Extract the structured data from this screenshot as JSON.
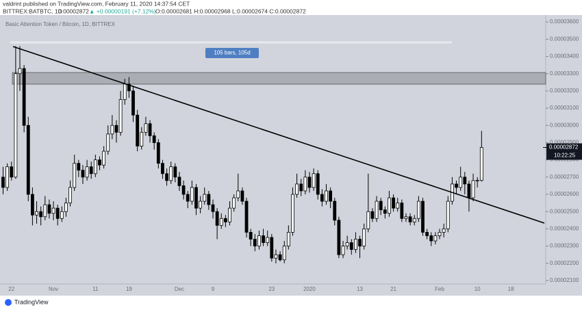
{
  "header": {
    "author_line": "valdrint published on TradingView.com, February 11, 2020 14:37:54 CET",
    "symbol": "BITTREX:BATBTC, 1D",
    "last": "0.00002872",
    "change": "▲ +0.00000191 (+7.12%)",
    "ohlc": "O:0.00002681 H:0.00002968 L:0.00002674 C:0.00002872"
  },
  "chart_data": {
    "type": "candlestick",
    "title": "Basic Attention Token / Bitcoin, 1D, BITTREX",
    "categories": [
      null,
      null,
      "22",
      null,
      null,
      null,
      null,
      null,
      null,
      null,
      null,
      null,
      "Nov",
      null,
      null,
      null,
      null,
      null,
      null,
      null,
      null,
      null,
      "11",
      null,
      null,
      null,
      null,
      null,
      null,
      null,
      "19",
      null,
      null,
      null,
      null,
      null,
      null,
      null,
      null,
      null,
      null,
      null,
      "Dec",
      null,
      null,
      null,
      null,
      null,
      null,
      null,
      "9",
      null,
      null,
      null,
      null,
      null,
      null,
      null,
      null,
      null,
      null,
      null,
      null,
      null,
      "23",
      null,
      null,
      null,
      null,
      null,
      null,
      null,
      null,
      "2020",
      null,
      null,
      null,
      null,
      null,
      null,
      null,
      null,
      null,
      null,
      null,
      "13",
      null,
      null,
      null,
      null,
      null,
      null,
      null,
      "21",
      null,
      null,
      null,
      null,
      null,
      null,
      null,
      null,
      null,
      null,
      "Feb",
      null,
      null,
      null,
      null,
      null,
      null,
      null,
      null,
      "10",
      null,
      null,
      null,
      null,
      null,
      null,
      null,
      "18"
    ],
    "open": [
      2.7e-05,
      2.64e-05,
      2.76e-05,
      2.7e-05,
      3.3e-05,
      3.33e-05,
      3e-05,
      2.6e-05,
      2.48e-05,
      2.5e-05,
      2.47e-05,
      2.54e-05,
      2.49e-05,
      2.52e-05,
      2.46e-05,
      2.5e-05,
      2.55e-05,
      2.64e-05,
      2.78e-05,
      2.74e-05,
      2.7e-05,
      2.76e-05,
      2.72e-05,
      2.8e-05,
      2.77e-05,
      2.85e-05,
      2.95e-05,
      3e-05,
      2.96e-05,
      3.15e-05,
      3.24e-05,
      3.2e-05,
      3.06e-05,
      2.88e-05,
      2.96e-05,
      3.01e-05,
      2.94e-05,
      2.9e-05,
      2.78e-05,
      2.72e-05,
      2.68e-05,
      2.76e-05,
      2.7e-05,
      2.65e-05,
      2.6e-05,
      2.56e-05,
      2.64e-05,
      2.52e-05,
      2.56e-05,
      2.6e-05,
      2.54e-05,
      2.5e-05,
      2.42e-05,
      2.46e-05,
      2.44e-05,
      2.52e-05,
      2.58e-05,
      2.62e-05,
      2.56e-05,
      2.38e-05,
      2.34e-05,
      2.3e-05,
      2.36e-05,
      2.32e-05,
      2.35e-05,
      2.23e-05,
      2.25e-05,
      2.22e-05,
      2.3e-05,
      2.38e-05,
      2.6e-05,
      2.66e-05,
      2.62e-05,
      2.7e-05,
      2.64e-05,
      2.72e-05,
      2.6e-05,
      2.56e-05,
      2.62e-05,
      2.56e-05,
      2.45e-05,
      2.25e-05,
      2.3e-05,
      2.32e-05,
      2.28e-05,
      2.34e-05,
      2.3e-05,
      2.4e-05,
      2.5e-05,
      2.46e-05,
      2.56e-05,
      2.51e-05,
      2.49e-05,
      2.58e-05,
      2.52e-05,
      2.55e-05,
      2.46e-05,
      2.47e-05,
      2.44e-05,
      2.46e-05,
      2.56e-05,
      2.38e-05,
      2.36e-05,
      2.33e-05,
      2.36e-05,
      2.38e-05,
      2.4e-05,
      2.56e-05,
      2.66e-05,
      2.64e-05,
      2.7e-05,
      2.66e-05,
      2.58e-05,
      2.68e-05,
      2.681e-05,
      null,
      null,
      null,
      null,
      null,
      null,
      null
    ],
    "high": [
      2.76e-05,
      2.78e-05,
      2.79e-05,
      3.46e-05,
      3.46e-05,
      3.35e-05,
      3.05e-05,
      2.64e-05,
      2.56e-05,
      2.53e-05,
      2.59e-05,
      2.57e-05,
      2.56e-05,
      2.54e-05,
      2.53e-05,
      2.58e-05,
      2.68e-05,
      2.83e-05,
      2.8e-05,
      2.77e-05,
      2.8e-05,
      2.79e-05,
      2.83e-05,
      2.82e-05,
      2.88e-05,
      3e-05,
      3.06e-05,
      3.03e-05,
      3.2e-05,
      3.27e-05,
      3.28e-05,
      3.23e-05,
      3.09e-05,
      2.99e-05,
      3.05e-05,
      3.03e-05,
      2.96e-05,
      2.92e-05,
      2.8e-05,
      2.75e-05,
      2.79e-05,
      2.78e-05,
      2.73e-05,
      2.68e-05,
      2.62e-05,
      2.68e-05,
      2.66e-05,
      2.59e-05,
      2.64e-05,
      2.62e-05,
      2.57e-05,
      2.52e-05,
      2.49e-05,
      2.48e-05,
      2.56e-05,
      2.6e-05,
      2.72e-05,
      2.64e-05,
      2.58e-05,
      2.4e-05,
      2.37e-05,
      2.39e-05,
      2.4e-05,
      2.39e-05,
      2.37e-05,
      2.28e-05,
      2.27e-05,
      2.33e-05,
      2.42e-05,
      2.64e-05,
      2.72e-05,
      2.69e-05,
      2.74e-05,
      2.73e-05,
      2.75e-05,
      2.74e-05,
      2.63e-05,
      2.66e-05,
      2.64e-05,
      2.58e-05,
      2.47e-05,
      2.33e-05,
      2.36e-05,
      2.34e-05,
      2.38e-05,
      2.36e-05,
      2.43e-05,
      2.72e-05,
      2.52e-05,
      2.59e-05,
      2.58e-05,
      2.53e-05,
      2.62e-05,
      2.6e-05,
      2.58e-05,
      2.57e-05,
      2.49e-05,
      2.49e-05,
      2.48e-05,
      2.59e-05,
      2.58e-05,
      2.4e-05,
      2.38e-05,
      2.38e-05,
      2.4e-05,
      2.43e-05,
      2.59e-05,
      2.7e-05,
      2.68e-05,
      2.76e-05,
      2.73e-05,
      2.68e-05,
      2.72e-05,
      2.7e-05,
      2.968e-05,
      null,
      null,
      null,
      null,
      null,
      null,
      null
    ],
    "low": [
      2.6e-05,
      2.62e-05,
      2.68e-05,
      2.69e-05,
      3.2e-05,
      2.96e-05,
      2.56e-05,
      2.42e-05,
      2.43e-05,
      2.42e-05,
      2.45e-05,
      2.46e-05,
      2.45e-05,
      2.42e-05,
      2.44e-05,
      2.47e-05,
      2.53e-05,
      2.62e-05,
      2.7e-05,
      2.66e-05,
      2.68e-05,
      2.69e-05,
      2.7e-05,
      2.74e-05,
      2.75e-05,
      2.83e-05,
      2.92e-05,
      2.9e-05,
      2.94e-05,
      3.12e-05,
      3.16e-05,
      3.02e-05,
      2.85e-05,
      2.86e-05,
      2.94e-05,
      2.9e-05,
      2.86e-05,
      2.75e-05,
      2.69e-05,
      2.65e-05,
      2.66e-05,
      2.67e-05,
      2.62e-05,
      2.57e-05,
      2.52e-05,
      2.54e-05,
      2.48e-05,
      2.49e-05,
      2.54e-05,
      2.51e-05,
      2.46e-05,
      2.34e-05,
      2.4e-05,
      2.41e-05,
      2.42e-05,
      2.5e-05,
      2.56e-05,
      2.54e-05,
      2.35e-05,
      2.3e-05,
      2.27e-05,
      2.28e-05,
      2.3e-05,
      2.3e-05,
      2.21e-05,
      2.2e-05,
      2.21e-05,
      2.2e-05,
      2.28e-05,
      2.36e-05,
      2.58e-05,
      2.59e-05,
      2.6e-05,
      2.61e-05,
      2.62e-05,
      2.57e-05,
      2.53e-05,
      2.54e-05,
      2.52e-05,
      2.42e-05,
      2.23e-05,
      2.23e-05,
      2.28e-05,
      2.25e-05,
      2.26e-05,
      2.23e-05,
      2.28e-05,
      2.38e-05,
      2.44e-05,
      2.44e-05,
      2.48e-05,
      2.46e-05,
      2.47e-05,
      2.5e-05,
      2.5e-05,
      2.44e-05,
      2.44e-05,
      2.42e-05,
      2.42e-05,
      2.44e-05,
      2.36e-05,
      2.34e-05,
      2.3e-05,
      2.31e-05,
      2.34e-05,
      2.35e-05,
      2.38e-05,
      2.54e-05,
      2.6e-05,
      2.62e-05,
      2.6e-05,
      2.5e-05,
      2.56e-05,
      2.64e-05,
      2.674e-05,
      null,
      null,
      null,
      null,
      null,
      null,
      null
    ],
    "close": [
      2.64e-05,
      2.76e-05,
      2.7e-05,
      3.3e-05,
      3.33e-05,
      3e-05,
      2.6e-05,
      2.48e-05,
      2.5e-05,
      2.47e-05,
      2.54e-05,
      2.49e-05,
      2.52e-05,
      2.46e-05,
      2.5e-05,
      2.55e-05,
      2.64e-05,
      2.78e-05,
      2.74e-05,
      2.7e-05,
      2.76e-05,
      2.72e-05,
      2.8e-05,
      2.77e-05,
      2.85e-05,
      2.95e-05,
      3e-05,
      2.96e-05,
      3.15e-05,
      3.24e-05,
      3.2e-05,
      3.06e-05,
      2.88e-05,
      2.96e-05,
      3.01e-05,
      2.94e-05,
      2.9e-05,
      2.78e-05,
      2.72e-05,
      2.68e-05,
      2.76e-05,
      2.7e-05,
      2.65e-05,
      2.6e-05,
      2.56e-05,
      2.64e-05,
      2.52e-05,
      2.56e-05,
      2.6e-05,
      2.54e-05,
      2.5e-05,
      2.42e-05,
      2.46e-05,
      2.44e-05,
      2.52e-05,
      2.58e-05,
      2.62e-05,
      2.56e-05,
      2.38e-05,
      2.34e-05,
      2.3e-05,
      2.36e-05,
      2.32e-05,
      2.35e-05,
      2.23e-05,
      2.25e-05,
      2.22e-05,
      2.3e-05,
      2.38e-05,
      2.6e-05,
      2.66e-05,
      2.62e-05,
      2.7e-05,
      2.64e-05,
      2.72e-05,
      2.6e-05,
      2.56e-05,
      2.62e-05,
      2.56e-05,
      2.45e-05,
      2.25e-05,
      2.3e-05,
      2.32e-05,
      2.28e-05,
      2.34e-05,
      2.3e-05,
      2.4e-05,
      2.5e-05,
      2.46e-05,
      2.56e-05,
      2.51e-05,
      2.49e-05,
      2.58e-05,
      2.52e-05,
      2.55e-05,
      2.46e-05,
      2.47e-05,
      2.44e-05,
      2.46e-05,
      2.56e-05,
      2.38e-05,
      2.36e-05,
      2.33e-05,
      2.36e-05,
      2.38e-05,
      2.4e-05,
      2.56e-05,
      2.66e-05,
      2.64e-05,
      2.7e-05,
      2.66e-05,
      2.58e-05,
      2.68e-05,
      2.681e-05,
      2.872e-05,
      null,
      null,
      null,
      null,
      null,
      null,
      null
    ],
    "up_color": "#ffffff",
    "down_color": "#000000",
    "border_color": "#000000",
    "ylim": [
      2.08e-05,
      3.648e-05
    ],
    "yticks": [
      {
        "value": 2.1e-05,
        "label": "0.00002100"
      },
      {
        "value": 2.2e-05,
        "label": "0.00002200"
      },
      {
        "value": 2.3e-05,
        "label": "0.00002300"
      },
      {
        "value": 2.4e-05,
        "label": "0.00002400"
      },
      {
        "value": 2.5e-05,
        "label": "0.00002500"
      },
      {
        "value": 2.6e-05,
        "label": "0.00002600"
      },
      {
        "value": 2.7e-05,
        "label": "0.00002700"
      },
      {
        "value": 2.8e-05,
        "label": "0.00002800"
      },
      {
        "value": 2.9e-05,
        "label": "0.00002900"
      },
      {
        "value": 3e-05,
        "label": "0.00003000"
      },
      {
        "value": 3.1e-05,
        "label": "0.00003100"
      },
      {
        "value": 3.2e-05,
        "label": "0.00003200"
      },
      {
        "value": 3.3e-05,
        "label": "0.00003300"
      },
      {
        "value": 3.4e-05,
        "label": "0.00003400"
      },
      {
        "value": 3.5e-05,
        "label": "0.00003500"
      },
      {
        "value": 3.6e-05,
        "label": "0.00003600"
      }
    ],
    "grid": false,
    "last_price": {
      "value": 2.872e-05,
      "label": "0.00002872"
    },
    "countdown": "10:22:25",
    "measure_label": "105 bars, 105d"
  },
  "footer": {
    "brand": "TradingView"
  }
}
